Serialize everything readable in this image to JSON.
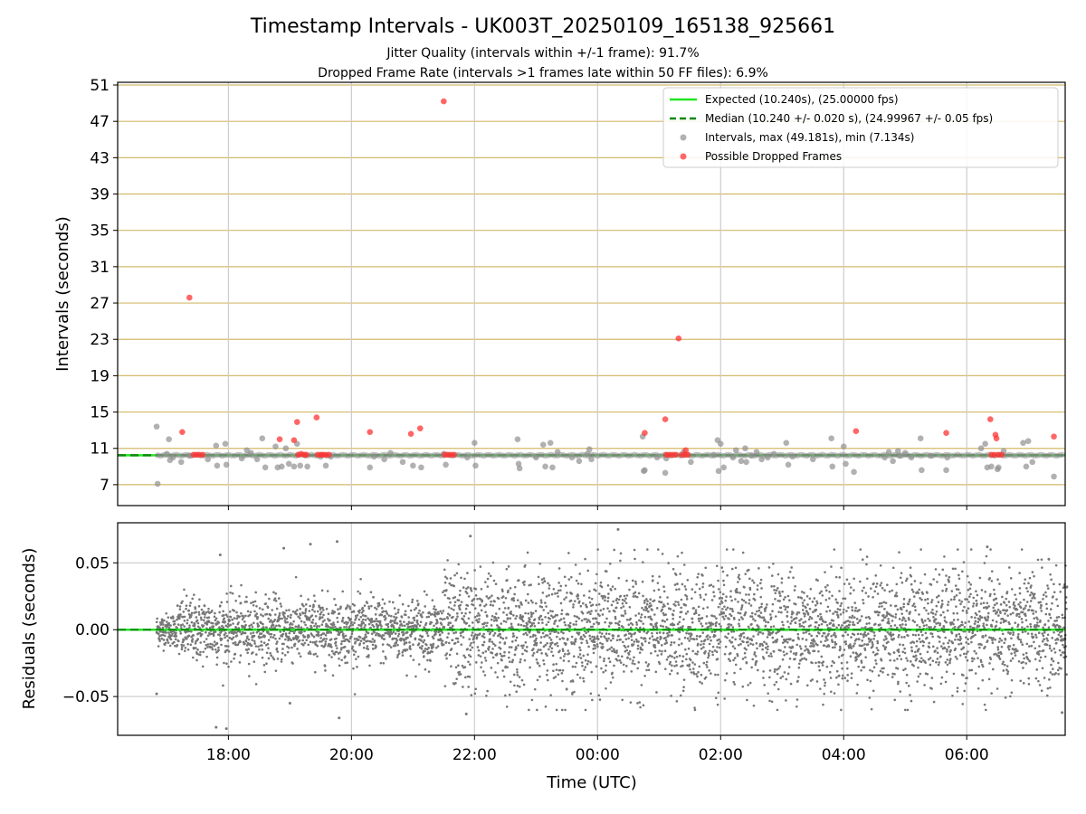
{
  "chart_data": [
    {
      "type": "scatter",
      "title": "Timestamp Intervals - UK003T_20250109_165138_925661",
      "subtitle_lines": [
        "Jitter Quality (intervals within +/-1 frame): 91.7%",
        "Dropped Frame Rate (intervals >1 frames late within 50 FF files): 6.9%"
      ],
      "ylabel": "Intervals (seconds)",
      "y_ticks": [
        7,
        11,
        15,
        19,
        23,
        27,
        31,
        35,
        39,
        43,
        47,
        51
      ],
      "ylim": [
        4.7,
        51.3
      ],
      "xlim_hours": [
        16.2,
        7.6
      ],
      "x_tick_hours": [
        18,
        20,
        22,
        0,
        2,
        4,
        6
      ],
      "grid": "y-gridlines dark goldenrod, x-gridlines gray",
      "legend_position": "upper right",
      "legend": [
        "Expected (10.240s), (25.00000 fps)",
        "Median (10.240 +/- 0.020 s), (24.99967 +/- 0.05 fps)",
        "Intervals, max (49.181s), min (7.134s)",
        "Possible Dropped Frames"
      ],
      "expected_interval": 10.24,
      "median_interval": 10.24,
      "colors": {
        "expected": "#22e422",
        "median": "#118811",
        "intervals": "#909090",
        "dropped": "#ff3333",
        "ygrid": "#d4b96a",
        "xgrid": "#cccccc"
      },
      "series": [
        {
          "name": "Intervals, max (49.181s), min (7.134s)",
          "points_time_value": [
            [
              "16:50",
              13.4
            ],
            [
              "16:51",
              7.1
            ],
            [
              "17:00",
              10.4
            ],
            [
              "17:02",
              12.0
            ],
            [
              "17:03",
              9.7
            ],
            [
              "17:06",
              10.0
            ],
            [
              "17:14",
              9.5
            ],
            [
              "17:22",
              10.2
            ],
            [
              "17:40",
              9.8
            ],
            [
              "17:48",
              11.3
            ],
            [
              "17:49",
              9.1
            ],
            [
              "17:57",
              11.5
            ],
            [
              "17:58",
              9.2
            ],
            [
              "18:13",
              9.9
            ],
            [
              "18:18",
              10.8
            ],
            [
              "18:22",
              10.5
            ],
            [
              "18:28",
              9.8
            ],
            [
              "18:33",
              12.1
            ],
            [
              "18:36",
              8.9
            ],
            [
              "18:46",
              11.2
            ],
            [
              "18:48",
              8.9
            ],
            [
              "18:52",
              9.0
            ],
            [
              "18:56",
              11.0
            ],
            [
              "18:59",
              9.3
            ],
            [
              "19:04",
              9.0
            ],
            [
              "19:07",
              11.5
            ],
            [
              "19:10",
              9.1
            ],
            [
              "19:17",
              9.0
            ],
            [
              "19:30",
              10.1
            ],
            [
              "19:35",
              9.1
            ],
            [
              "19:40",
              10.1
            ],
            [
              "20:18",
              8.9
            ],
            [
              "20:22",
              10.1
            ],
            [
              "20:32",
              9.8
            ],
            [
              "20:38",
              10.5
            ],
            [
              "20:50",
              9.5
            ],
            [
              "21:00",
              9.1
            ],
            [
              "21:08",
              8.9
            ],
            [
              "21:30",
              10.4
            ],
            [
              "21:32",
              9.2
            ],
            [
              "21:53",
              10.0
            ],
            [
              "22:00",
              11.6
            ],
            [
              "22:01",
              9.1
            ],
            [
              "22:42",
              12.0
            ],
            [
              "22:43",
              9.3
            ],
            [
              "22:44",
              8.8
            ],
            [
              "23:00",
              10.0
            ],
            [
              "23:07",
              11.4
            ],
            [
              "23:09",
              9.0
            ],
            [
              "23:14",
              11.6
            ],
            [
              "23:16",
              8.9
            ],
            [
              "23:21",
              10.6
            ],
            [
              "23:35",
              10.0
            ],
            [
              "23:42",
              9.6
            ],
            [
              "23:50",
              10.4
            ],
            [
              "23:52",
              10.9
            ],
            [
              "23:54",
              9.8
            ],
            [
              "00:44",
              12.3
            ],
            [
              "00:45",
              8.5
            ],
            [
              "00:46",
              8.6
            ],
            [
              "00:58",
              10.0
            ],
            [
              "01:06",
              8.3
            ],
            [
              "01:07",
              9.9
            ],
            [
              "01:24",
              10.6
            ],
            [
              "01:31",
              9.5
            ],
            [
              "01:53",
              10.3
            ],
            [
              "01:57",
              11.9
            ],
            [
              "01:58",
              8.5
            ],
            [
              "02:00",
              11.5
            ],
            [
              "02:03",
              8.9
            ],
            [
              "02:12",
              10.0
            ],
            [
              "02:15",
              10.8
            ],
            [
              "02:20",
              9.6
            ],
            [
              "02:24",
              11.0
            ],
            [
              "02:25",
              9.5
            ],
            [
              "02:30",
              10.2
            ],
            [
              "02:35",
              10.6
            ],
            [
              "02:40",
              9.8
            ],
            [
              "02:46",
              10.0
            ],
            [
              "02:52",
              10.4
            ],
            [
              "03:04",
              11.6
            ],
            [
              "03:06",
              9.2
            ],
            [
              "03:10",
              10.1
            ],
            [
              "03:30",
              9.8
            ],
            [
              "03:48",
              12.1
            ],
            [
              "03:49",
              9.0
            ],
            [
              "04:00",
              11.2
            ],
            [
              "04:02",
              9.3
            ],
            [
              "04:10",
              8.4
            ],
            [
              "04:40",
              10.0
            ],
            [
              "04:44",
              10.6
            ],
            [
              "04:48",
              9.6
            ],
            [
              "04:53",
              10.7
            ],
            [
              "04:55",
              10.2
            ],
            [
              "05:00",
              10.5
            ],
            [
              "05:06",
              10.0
            ],
            [
              "05:15",
              12.1
            ],
            [
              "05:16",
              8.6
            ],
            [
              "05:25",
              10.2
            ],
            [
              "05:40",
              8.6
            ],
            [
              "05:41",
              10.0
            ],
            [
              "06:14",
              11.0
            ],
            [
              "06:18",
              11.5
            ],
            [
              "06:20",
              8.9
            ],
            [
              "06:24",
              9.0
            ],
            [
              "06:30",
              8.7
            ],
            [
              "06:31",
              8.9
            ],
            [
              "06:36",
              10.7
            ],
            [
              "06:55",
              11.6
            ],
            [
              "06:58",
              9.0
            ],
            [
              "07:00",
              11.8
            ],
            [
              "07:04",
              9.5
            ],
            [
              "07:25",
              7.9
            ]
          ]
        },
        {
          "name": "Possible Dropped Frames",
          "points_time_value": [
            [
              "17:15",
              12.8
            ],
            [
              "17:22",
              27.6
            ],
            [
              "17:26",
              10.3
            ],
            [
              "17:29",
              10.3
            ],
            [
              "17:32",
              10.3
            ],
            [
              "17:35",
              10.3
            ],
            [
              "18:50",
              12.0
            ],
            [
              "19:04",
              11.9
            ],
            [
              "19:07",
              13.9
            ],
            [
              "19:08",
              10.3
            ],
            [
              "19:11",
              10.4
            ],
            [
              "19:14",
              10.3
            ],
            [
              "19:16",
              10.3
            ],
            [
              "19:26",
              14.4
            ],
            [
              "19:27",
              10.3
            ],
            [
              "19:30",
              10.3
            ],
            [
              "19:32",
              10.3
            ],
            [
              "19:35",
              10.3
            ],
            [
              "19:38",
              10.3
            ],
            [
              "20:18",
              12.8
            ],
            [
              "20:58",
              12.6
            ],
            [
              "21:07",
              13.2
            ],
            [
              "21:30",
              49.2
            ],
            [
              "21:31",
              10.3
            ],
            [
              "21:34",
              10.3
            ],
            [
              "21:37",
              10.3
            ],
            [
              "21:40",
              10.3
            ],
            [
              "00:46",
              12.7
            ],
            [
              "01:06",
              14.2
            ],
            [
              "01:07",
              10.3
            ],
            [
              "01:10",
              10.3
            ],
            [
              "01:13",
              10.3
            ],
            [
              "01:16",
              10.3
            ],
            [
              "01:19",
              23.1
            ],
            [
              "01:22",
              10.3
            ],
            [
              "01:25",
              10.3
            ],
            [
              "01:26",
              10.8
            ],
            [
              "01:28",
              10.3
            ],
            [
              "04:12",
              12.9
            ],
            [
              "05:40",
              12.7
            ],
            [
              "06:23",
              14.2
            ],
            [
              "06:24",
              10.3
            ],
            [
              "06:27",
              10.3
            ],
            [
              "06:28",
              12.5
            ],
            [
              "06:29",
              12.1
            ],
            [
              "06:31",
              10.3
            ],
            [
              "06:34",
              10.3
            ],
            [
              "07:25",
              12.3
            ]
          ]
        }
      ]
    },
    {
      "type": "scatter",
      "xlabel": "Time (UTC)",
      "ylabel": "Residuals (seconds)",
      "y_tick_labels": [
        "0.05",
        "0.00",
        "−0.05"
      ],
      "y_tick_values": [
        0.05,
        0.0,
        -0.05
      ],
      "ylim": [
        -0.079,
        0.08
      ],
      "x_tick_labels": [
        "18:00",
        "20:00",
        "22:00",
        "00:00",
        "02:00",
        "04:00",
        "06:00"
      ],
      "x_tick_hours": [
        18,
        20,
        22,
        0,
        2,
        4,
        6
      ],
      "xlim_hours": [
        16.2,
        7.6
      ],
      "grid": true,
      "residual_points": {
        "time_range": [
          "16:50",
          "07:38"
        ],
        "approx_count": 4800,
        "spread_by_segment": [
          {
            "from": "16:50",
            "to": "17:10",
            "sd": 0.006
          },
          {
            "from": "17:10",
            "to": "21:30",
            "sd": 0.012
          },
          {
            "from": "21:30",
            "to": "07:38",
            "sd": 0.022
          }
        ],
        "notable_points_time_value": [
          [
            "16:50",
            -0.048
          ],
          [
            "17:48",
            -0.073
          ],
          [
            "17:58",
            -0.074
          ],
          [
            "17:52",
            0.056
          ],
          [
            "18:54",
            0.061
          ],
          [
            "19:00",
            -0.055
          ],
          [
            "19:20",
            0.064
          ],
          [
            "19:46",
            0.066
          ],
          [
            "19:48",
            -0.066
          ],
          [
            "21:56",
            0.07
          ],
          [
            "21:52",
            -0.063
          ],
          [
            "00:20",
            0.075
          ],
          [
            "06:20",
            0.062
          ],
          [
            "07:33",
            -0.062
          ]
        ],
        "color": "#777777"
      }
    }
  ]
}
